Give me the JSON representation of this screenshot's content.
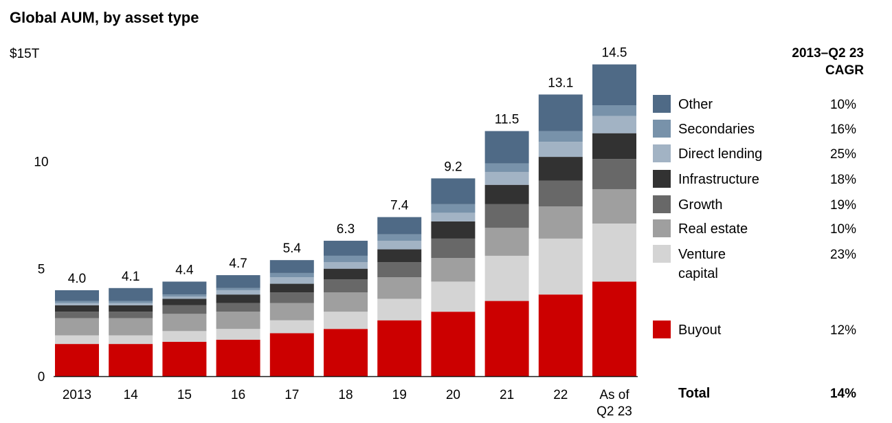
{
  "chart_data": {
    "type": "bar",
    "stacked": true,
    "title": "Global AUM, by asset type",
    "y_unit_label": "$15T",
    "ylim": [
      0,
      15
    ],
    "yticks": [
      {
        "value": 0,
        "label": "0"
      },
      {
        "value": 5,
        "label": "5"
      },
      {
        "value": 10,
        "label": "10"
      }
    ],
    "categories": [
      [
        "2013"
      ],
      [
        "14"
      ],
      [
        "15"
      ],
      [
        "16"
      ],
      [
        "17"
      ],
      [
        "18"
      ],
      [
        "19"
      ],
      [
        "20"
      ],
      [
        "21"
      ],
      [
        "22"
      ],
      [
        "As of",
        "Q2 23"
      ]
    ],
    "totals": [
      "4.0",
      "4.1",
      "4.4",
      "4.7",
      "5.4",
      "6.3",
      "7.4",
      "9.2",
      "11.5",
      "13.1",
      "14.5"
    ],
    "series": [
      {
        "name": "Buyout",
        "color": "#cc0000",
        "cagr": "12%",
        "values": [
          1.5,
          1.5,
          1.6,
          1.7,
          2.0,
          2.2,
          2.6,
          3.0,
          3.5,
          3.8,
          4.4
        ]
      },
      {
        "name": "Venture capital",
        "color": "#d4d4d4",
        "cagr": "23%",
        "values": [
          0.4,
          0.4,
          0.5,
          0.5,
          0.6,
          0.8,
          1.0,
          1.4,
          2.1,
          2.6,
          2.7
        ]
      },
      {
        "name": "Real estate",
        "color": "#9f9f9f",
        "cagr": "10%",
        "values": [
          0.8,
          0.8,
          0.8,
          0.8,
          0.8,
          0.9,
          1.0,
          1.1,
          1.3,
          1.5,
          1.6
        ]
      },
      {
        "name": "Growth",
        "color": "#686868",
        "cagr": "19%",
        "values": [
          0.3,
          0.3,
          0.4,
          0.4,
          0.5,
          0.6,
          0.7,
          0.9,
          1.1,
          1.2,
          1.4
        ]
      },
      {
        "name": "Infrastructure",
        "color": "#323232",
        "cagr": "18%",
        "values": [
          0.3,
          0.3,
          0.3,
          0.4,
          0.4,
          0.5,
          0.6,
          0.8,
          0.9,
          1.1,
          1.2
        ]
      },
      {
        "name": "Direct lending",
        "color": "#a2b3c4",
        "cagr": "25%",
        "values": [
          0.1,
          0.1,
          0.1,
          0.2,
          0.3,
          0.3,
          0.4,
          0.4,
          0.6,
          0.7,
          0.8
        ]
      },
      {
        "name": "Secondaries",
        "color": "#7892aa",
        "cagr": "16%",
        "values": [
          0.1,
          0.1,
          0.1,
          0.1,
          0.2,
          0.3,
          0.3,
          0.4,
          0.4,
          0.5,
          0.5
        ]
      },
      {
        "name": "Other",
        "color": "#4f6a86",
        "cagr": "10%",
        "values": [
          0.5,
          0.6,
          0.6,
          0.6,
          0.6,
          0.7,
          0.8,
          1.2,
          1.5,
          1.7,
          1.9
        ]
      }
    ],
    "legend": {
      "placement": "right",
      "order": [
        "Other",
        "Secondaries",
        "Direct lending",
        "Infrastructure",
        "Growth",
        "Real estate",
        "Venture capital",
        "Buyout"
      ],
      "display_names": {
        "Other": [
          "Other"
        ],
        "Secondaries": [
          "Secondaries"
        ],
        "Direct lending": [
          "Direct lending"
        ],
        "Infrastructure": [
          "Infrastructure"
        ],
        "Growth": [
          "Growth"
        ],
        "Real estate": [
          "Real estate"
        ],
        "Venture capital": [
          "Venture",
          "capital"
        ],
        "Buyout": [
          "Buyout"
        ]
      }
    },
    "cagr_header": [
      "2013–Q2 23",
      "CAGR"
    ],
    "total_row": {
      "label": "Total",
      "cagr": "14%"
    },
    "grid": false
  }
}
